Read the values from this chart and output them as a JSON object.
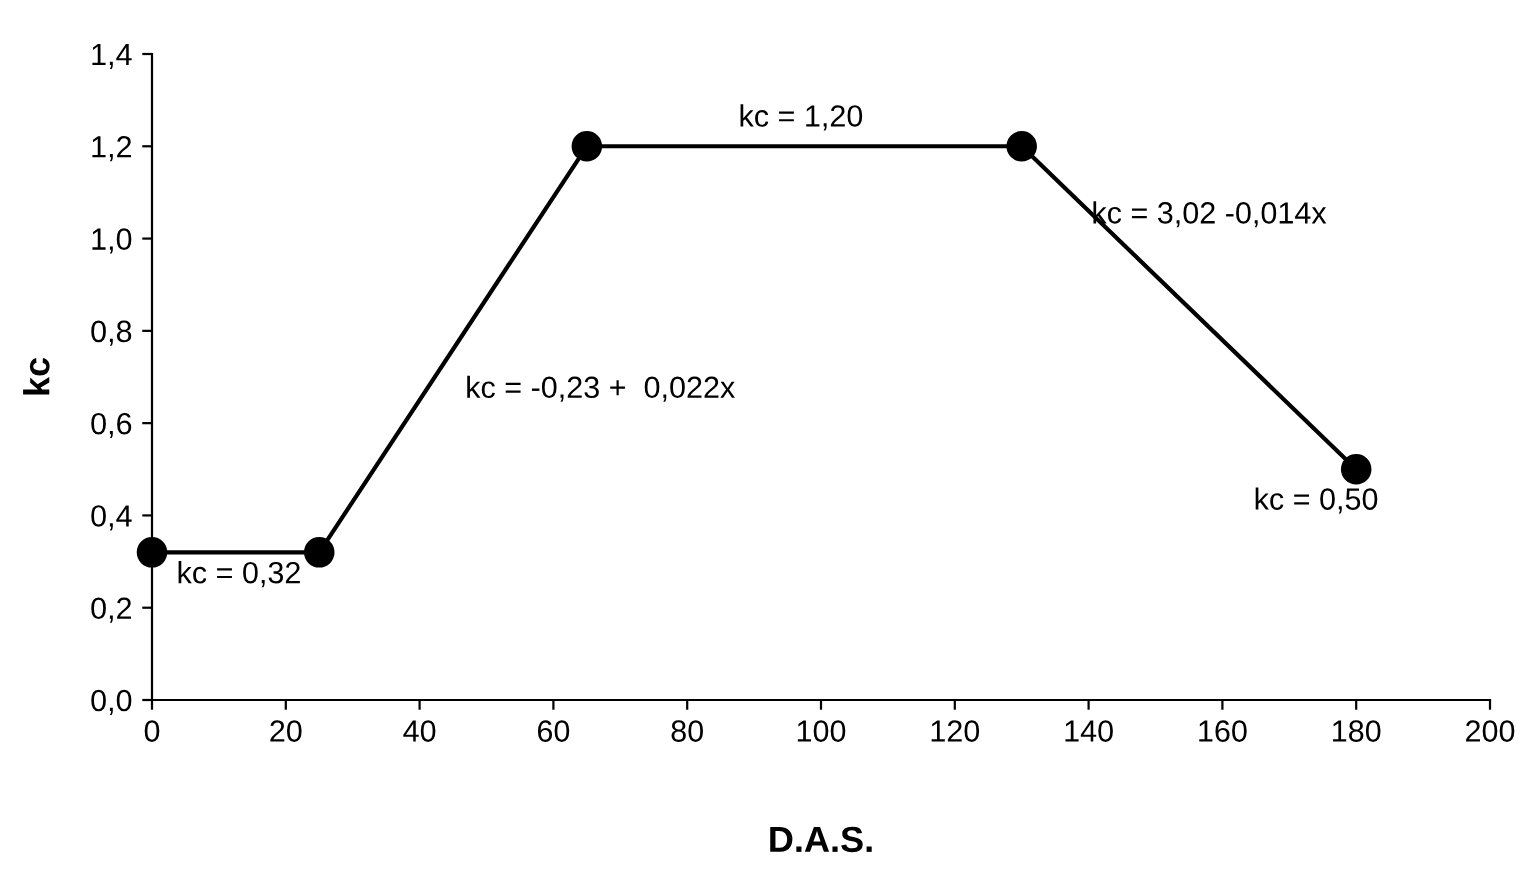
{
  "chart_data": {
    "type": "line",
    "xlabel": "D.A.S.",
    "ylabel": "kc",
    "x": [
      0,
      25,
      65,
      130,
      180
    ],
    "series": [
      {
        "color": "#000000",
        "values": [
          0.32,
          0.32,
          1.2,
          1.2,
          0.5
        ]
      }
    ],
    "marker": "circle",
    "line_style": "solid",
    "grid": false,
    "legend": false,
    "xlim": [
      0,
      200
    ],
    "xticks": [
      0,
      20,
      40,
      60,
      80,
      100,
      120,
      140,
      160,
      180,
      200
    ],
    "ylim": [
      0,
      1.4
    ],
    "yticks": [
      {
        "value": 0,
        "label": "0,0"
      },
      {
        "value": 0.2,
        "label": "0,2"
      },
      {
        "value": 0.4,
        "label": "0,4"
      },
      {
        "value": 0.6,
        "label": "0,6"
      },
      {
        "value": 0.8,
        "label": "0,8"
      },
      {
        "value": 1.0,
        "label": "1,0"
      },
      {
        "value": 1.2,
        "label": "1,2"
      },
      {
        "value": 1.4,
        "label": "1,4"
      }
    ],
    "annotations": [
      "kc = 0,32",
      "kc = -0,23 +  0,022x",
      "kc = 1,20",
      "kc = 3,02 -0,014x",
      "kc = 0,50"
    ]
  }
}
